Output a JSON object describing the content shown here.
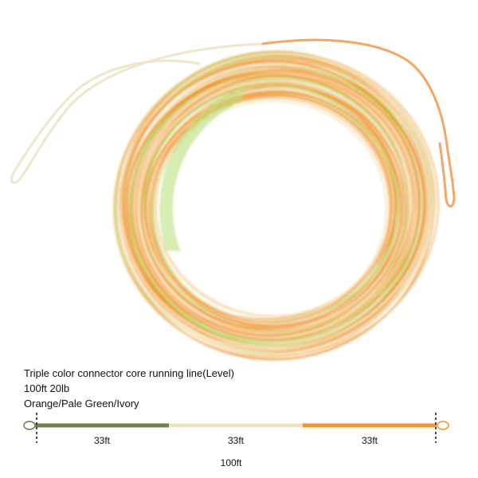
{
  "product": {
    "title": "Triple color connector core running line(Level)",
    "spec": "100ft  20lb",
    "colors": "Orange/Pale Green/Ivory"
  },
  "diagram": {
    "segments": [
      {
        "label": "33ft",
        "color": "#6b7f4f"
      },
      {
        "label": "33ft",
        "color": "#ede4c6"
      },
      {
        "label": "33ft",
        "color": "#f0952a"
      }
    ],
    "total_label": "100ft"
  },
  "palette": {
    "orange": "#f0952a",
    "pale_green": "#b9e07a",
    "ivory": "#f6e7c4",
    "peach": "#f8c48a"
  }
}
